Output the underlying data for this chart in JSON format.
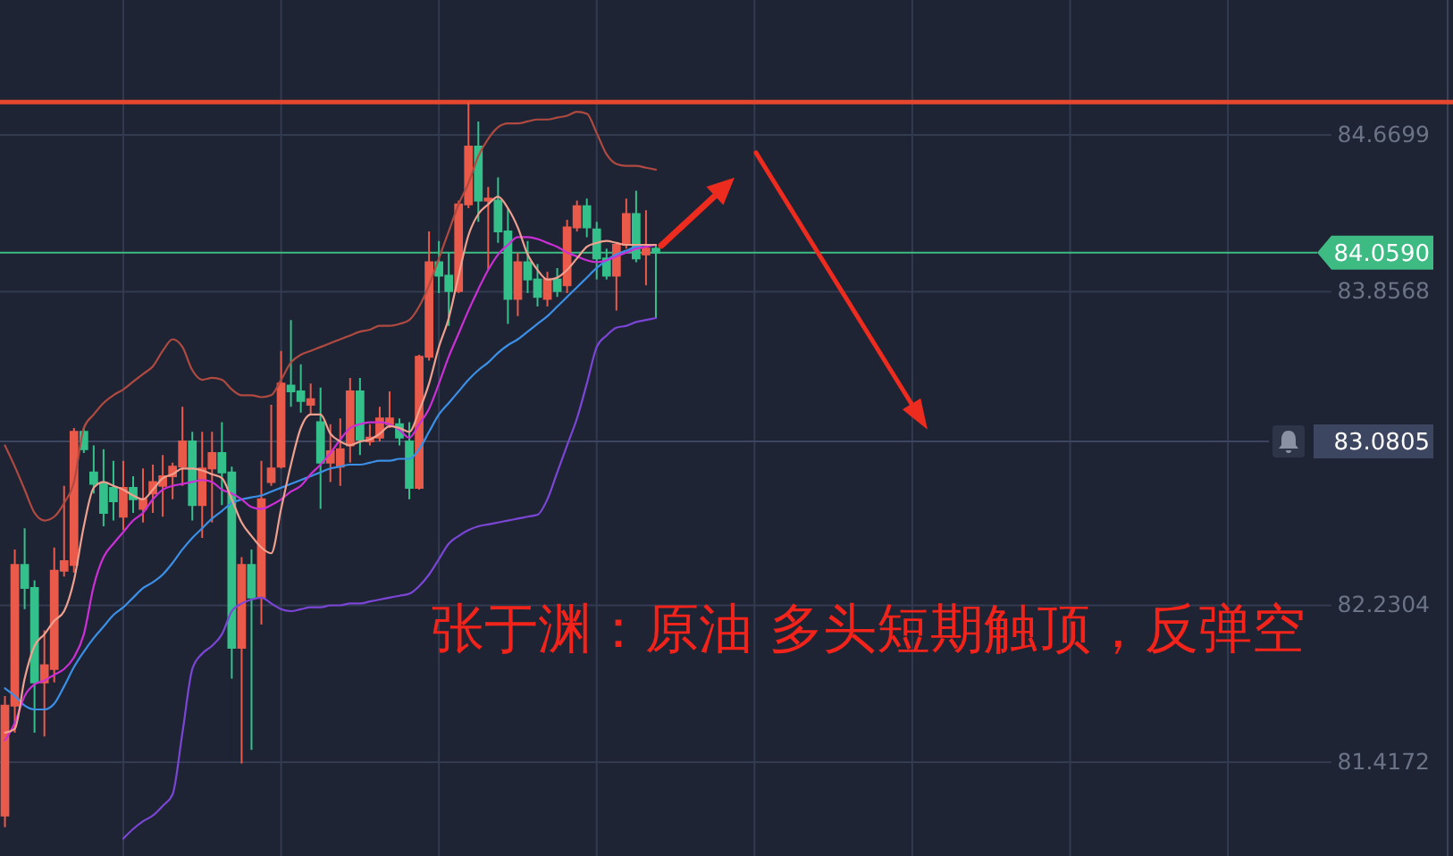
{
  "chart_data": {
    "type": "candlestick",
    "categories": [
      null,
      null,
      null,
      null,
      null,
      null,
      null,
      null,
      null,
      null,
      null,
      null,
      null,
      null,
      null,
      null,
      null,
      null,
      null,
      null,
      null,
      null,
      null,
      null,
      null,
      null,
      null,
      null,
      null,
      null,
      null,
      null,
      null,
      null,
      null,
      null,
      null,
      null,
      null,
      null,
      null,
      null,
      null,
      null,
      null,
      null,
      null,
      null,
      null,
      null,
      null,
      null,
      null,
      null,
      null,
      null,
      null,
      null,
      null,
      null,
      null,
      null,
      null,
      null,
      null,
      null,
      null,
      null,
      null,
      null,
      null,
      null,
      null,
      null,
      null,
      null,
      null,
      null,
      null,
      null,
      null,
      null,
      null,
      null,
      null,
      null,
      null,
      null,
      null,
      null,
      null,
      null,
      null,
      null,
      null,
      null,
      null,
      null,
      null,
      null,
      null,
      null,
      null,
      null,
      null,
      null,
      null,
      null,
      null,
      null,
      null,
      null,
      null,
      null,
      null,
      null,
      null,
      null,
      null,
      null,
      null,
      null,
      null,
      null,
      null,
      null,
      null,
      null,
      null,
      null,
      null,
      null,
      null,
      null,
      null
    ],
    "ohlc": [
      [
        81.14,
        81.76,
        81.08,
        81.71
      ],
      [
        81.71,
        82.52,
        81.57,
        82.44
      ],
      [
        82.44,
        82.63,
        82.21,
        82.32
      ],
      [
        82.32,
        82.36,
        81.57,
        81.83
      ],
      [
        81.83,
        82.1,
        81.55,
        81.92
      ],
      [
        81.9,
        82.53,
        81.83,
        82.41
      ],
      [
        82.41,
        82.85,
        82.38,
        82.46
      ],
      [
        82.44,
        83.15,
        82.4,
        83.13
      ],
      [
        83.13,
        83.15,
        83.02,
        83.04
      ],
      [
        82.92,
        83.06,
        82.81,
        82.86
      ],
      [
        82.86,
        83.04,
        82.64,
        82.71
      ],
      [
        82.84,
        82.98,
        82.67,
        82.77
      ],
      [
        82.69,
        82.98,
        82.62,
        82.84
      ],
      [
        82.84,
        82.9,
        82.71,
        82.78
      ],
      [
        82.73,
        82.94,
        82.66,
        82.78
      ],
      [
        82.81,
        82.96,
        82.71,
        82.87
      ],
      [
        82.85,
        83.01,
        82.69,
        82.9
      ],
      [
        82.9,
        82.97,
        82.78,
        82.95
      ],
      [
        82.95,
        83.26,
        82.85,
        83.08
      ],
      [
        83.08,
        83.13,
        82.67,
        82.75
      ],
      [
        82.75,
        83.13,
        82.58,
        82.94
      ],
      [
        82.94,
        83.13,
        82.66,
        83.02
      ],
      [
        83.02,
        83.18,
        82.75,
        82.92
      ],
      [
        82.92,
        82.95,
        81.85,
        82.01
      ],
      [
        82.01,
        82.48,
        81.41,
        82.44
      ],
      [
        82.44,
        82.52,
        81.48,
        82.27
      ],
      [
        82.27,
        82.98,
        82.13,
        82.78
      ],
      [
        82.87,
        83.27,
        82.85,
        82.94
      ],
      [
        82.95,
        83.55,
        82.94,
        83.38
      ],
      [
        83.37,
        83.71,
        83.26,
        83.34
      ],
      [
        83.34,
        83.48,
        83.23,
        83.29
      ],
      [
        83.27,
        83.38,
        83.22,
        83.3
      ],
      [
        83.18,
        83.36,
        82.73,
        82.97
      ],
      [
        82.97,
        83.17,
        82.87,
        83.03
      ],
      [
        82.95,
        83.2,
        82.85,
        83.04
      ],
      [
        83.06,
        83.41,
        82.97,
        83.34
      ],
      [
        83.34,
        83.41,
        83.01,
        83.09
      ],
      [
        83.08,
        83.17,
        83.06,
        83.1
      ],
      [
        83.1,
        83.26,
        83.08,
        83.2
      ],
      [
        83.17,
        83.34,
        83.15,
        83.2
      ],
      [
        83.17,
        83.2,
        83.06,
        83.1
      ],
      [
        83.08,
        83.18,
        82.78,
        82.84
      ],
      [
        82.84,
        83.53,
        82.83,
        83.52
      ],
      [
        83.52,
        84.17,
        83.5,
        84.01
      ],
      [
        84.01,
        84.12,
        83.85,
        83.94
      ],
      [
        83.94,
        84.06,
        83.68,
        83.86
      ],
      [
        83.86,
        84.33,
        83.85,
        84.31
      ],
      [
        84.31,
        84.84,
        84.29,
        84.61
      ],
      [
        84.61,
        84.74,
        84.22,
        84.33
      ],
      [
        84.33,
        84.4,
        83.97,
        84.34
      ],
      [
        84.33,
        84.45,
        84.11,
        84.17
      ],
      [
        84.17,
        84.29,
        83.69,
        83.82
      ],
      [
        83.82,
        84.06,
        83.73,
        84.01
      ],
      [
        84.01,
        84.12,
        83.85,
        83.92
      ],
      [
        83.92,
        84.0,
        83.78,
        83.83
      ],
      [
        83.82,
        83.96,
        83.78,
        83.92
      ],
      [
        83.92,
        83.98,
        83.83,
        83.86
      ],
      [
        83.89,
        84.23,
        83.85,
        84.19
      ],
      [
        84.19,
        84.33,
        84.17,
        84.3
      ],
      [
        84.3,
        84.34,
        84.14,
        84.19
      ],
      [
        84.18,
        84.22,
        83.92,
        84.03
      ],
      [
        84.03,
        84.08,
        83.92,
        83.94
      ],
      [
        83.94,
        84.11,
        83.76,
        84.1
      ],
      [
        84.1,
        84.34,
        84.08,
        84.26
      ],
      [
        84.26,
        84.38,
        84.01,
        84.03
      ],
      [
        84.05,
        84.28,
        83.89,
        84.08
      ],
      [
        84.08,
        84.1,
        83.72,
        84.059
      ],
      null,
      null,
      null,
      null,
      null,
      null,
      null,
      null,
      null,
      null,
      null,
      null,
      null,
      null,
      null,
      null,
      null,
      null,
      null,
      null,
      null,
      null,
      null,
      null,
      null,
      null,
      null,
      null,
      null,
      null,
      null,
      null,
      null,
      null,
      null,
      null,
      null,
      null,
      null,
      null,
      null,
      null,
      null,
      null,
      null,
      null,
      null,
      null,
      null,
      null,
      null,
      null,
      null,
      null,
      null,
      null,
      null,
      null,
      null,
      null,
      null,
      null,
      null,
      null,
      null,
      null,
      null,
      null
    ],
    "colors": [
      "#ea5a4b",
      "#ea5a4b",
      "#34c08b",
      "#34c08b",
      "#ea5a4b",
      "#ea5a4b",
      "#ea5a4b",
      "#ea5a4b",
      "#34c08b",
      "#34c08b",
      "#34c08b",
      "#34c08b",
      "#ea5a4b",
      "#34c08b",
      "#ea5a4b",
      "#ea5a4b",
      "#ea5a4b",
      "#ea5a4b",
      "#ea5a4b",
      "#34c08b",
      "#ea5a4b",
      "#ea5a4b",
      "#34c08b",
      "#34c08b",
      "#ea5a4b",
      "#34c08b",
      "#ea5a4b",
      "#ea5a4b",
      "#ea5a4b",
      "#34c08b",
      "#34c08b",
      "#ea5a4b",
      "#34c08b",
      "#ea5a4b",
      "#ea5a4b",
      "#ea5a4b",
      "#34c08b",
      "#ea5a4b",
      "#ea5a4b",
      "#ea5a4b",
      "#34c08b",
      "#34c08b",
      "#ea5a4b",
      "#ea5a4b",
      "#34c08b",
      "#34c08b",
      "#ea5a4b",
      "#ea5a4b",
      "#34c08b",
      "#ea5a4b",
      "#34c08b",
      "#34c08b",
      "#ea5a4b",
      "#34c08b",
      "#34c08b",
      "#ea5a4b",
      "#34c08b",
      "#ea5a4b",
      "#ea5a4b",
      "#34c08b",
      "#34c08b",
      "#34c08b",
      "#ea5a4b",
      "#ea5a4b",
      "#34c08b",
      "#ea5a4b",
      "#34c08b",
      null,
      null,
      null,
      null,
      null,
      null,
      null,
      null,
      null,
      null,
      null,
      null,
      null,
      null,
      null,
      null,
      null,
      null,
      null,
      null,
      null,
      null,
      null,
      null,
      null,
      null,
      null,
      null,
      null,
      null,
      null,
      null,
      null,
      null,
      null,
      null,
      null,
      null,
      null,
      null,
      null,
      null,
      null,
      null,
      null,
      null,
      null,
      null,
      null,
      null,
      null,
      null,
      null,
      null,
      null,
      null,
      null,
      null,
      null,
      null,
      null,
      null,
      null,
      null,
      null,
      null,
      null,
      null
    ],
    "series": [
      {
        "type": "line",
        "color": "#b04a40",
        "values": [
          83.06,
          82.95,
          82.83,
          82.71,
          82.67,
          82.69,
          82.76,
          82.87,
          83.15,
          83.22,
          83.28,
          83.32,
          83.35,
          83.39,
          83.43,
          83.47,
          83.55,
          83.61,
          83.57,
          83.45,
          83.4,
          83.41,
          83.4,
          83.35,
          83.32,
          83.32,
          83.31,
          83.32,
          83.4,
          83.49,
          83.53,
          83.55,
          83.57,
          83.59,
          83.61,
          83.63,
          83.65,
          83.66,
          83.68,
          83.68,
          83.69,
          83.71,
          83.78,
          83.89,
          84.03,
          84.17,
          84.31,
          84.42,
          84.56,
          84.65,
          84.71,
          84.73,
          84.73,
          84.74,
          84.75,
          84.75,
          84.76,
          84.77,
          84.79,
          84.78,
          84.68,
          84.57,
          84.52,
          84.51,
          84.51,
          84.5,
          84.49,
          null,
          null,
          null,
          null,
          null,
          null,
          null,
          null,
          null,
          null,
          null,
          null,
          null,
          null,
          null,
          null,
          null,
          null,
          null,
          null,
          null,
          null,
          null,
          null,
          null,
          null,
          null,
          null,
          null,
          null,
          null,
          null,
          null,
          null,
          null,
          null,
          null,
          null,
          null,
          null,
          null,
          null,
          null,
          null,
          null,
          null,
          null,
          null,
          null,
          null,
          null,
          null,
          null,
          null,
          null,
          null,
          null,
          null,
          null,
          null,
          null,
          null,
          null,
          null,
          null,
          null,
          null,
          null
        ]
      },
      {
        "type": "line",
        "color": "#7b46d6",
        "values": [
          null,
          null,
          null,
          null,
          null,
          null,
          null,
          null,
          null,
          null,
          null,
          null,
          81.02,
          81.07,
          81.11,
          81.14,
          81.19,
          81.25,
          81.57,
          81.9,
          81.98,
          82.02,
          82.08,
          82.2,
          82.24,
          82.26,
          82.27,
          82.24,
          82.21,
          82.2,
          82.21,
          82.22,
          82.22,
          82.23,
          82.23,
          82.24,
          82.24,
          82.25,
          82.26,
          82.27,
          82.28,
          82.29,
          82.33,
          82.39,
          82.47,
          82.55,
          82.59,
          82.62,
          82.64,
          82.65,
          82.66,
          82.67,
          82.68,
          82.69,
          82.7,
          82.78,
          82.92,
          83.06,
          83.2,
          83.38,
          83.57,
          83.63,
          83.67,
          83.68,
          83.7,
          83.71,
          83.72,
          null,
          null,
          null,
          null,
          null,
          null,
          null,
          null,
          null,
          null,
          null,
          null,
          null,
          null,
          null,
          null,
          null,
          null,
          null,
          null,
          null,
          null,
          null,
          null,
          null,
          null,
          null,
          null,
          null,
          null,
          null,
          null,
          null,
          null,
          null,
          null,
          null,
          null,
          null,
          null,
          null,
          null,
          null,
          null,
          null,
          null,
          null,
          null,
          null,
          null,
          null,
          null,
          null,
          null,
          null,
          null,
          null,
          null,
          null,
          null,
          null,
          null,
          null,
          null,
          null,
          null,
          null,
          null
        ]
      },
      {
        "type": "line",
        "color": "#3b8fe6",
        "values": [
          81.8,
          81.76,
          81.71,
          81.69,
          81.69,
          81.72,
          81.81,
          81.91,
          81.99,
          82.06,
          82.12,
          82.18,
          82.22,
          82.27,
          82.32,
          82.35,
          82.39,
          82.45,
          82.52,
          82.58,
          82.63,
          82.68,
          82.72,
          82.76,
          82.78,
          82.79,
          82.8,
          82.82,
          82.84,
          82.86,
          82.88,
          82.9,
          82.92,
          82.94,
          82.95,
          82.96,
          82.96,
          82.97,
          82.98,
          82.98,
          82.99,
          82.99,
          83.04,
          83.13,
          83.22,
          83.28,
          83.34,
          83.4,
          83.45,
          83.49,
          83.54,
          83.58,
          83.61,
          83.65,
          83.69,
          83.73,
          83.78,
          83.83,
          83.88,
          83.93,
          83.98,
          84.02,
          84.05,
          84.07,
          84.09,
          84.1,
          84.1,
          null,
          null,
          null,
          null,
          null,
          null,
          null,
          null,
          null,
          null,
          null,
          null,
          null,
          null,
          null,
          null,
          null,
          null,
          null,
          null,
          null,
          null,
          null,
          null,
          null,
          null,
          null,
          null,
          null,
          null,
          null,
          null,
          null,
          null,
          null,
          null,
          null,
          null,
          null,
          null,
          null,
          null,
          null,
          null,
          null,
          null,
          null,
          null,
          null,
          null,
          null,
          null,
          null,
          null,
          null,
          null,
          null,
          null,
          null,
          null,
          null,
          null,
          null,
          null,
          null,
          null,
          null,
          null
        ]
      },
      {
        "type": "line",
        "color": "#cc2fd6",
        "values": [
          81.53,
          81.62,
          81.76,
          81.82,
          81.84,
          81.87,
          81.9,
          81.96,
          82.08,
          82.33,
          82.48,
          82.55,
          82.61,
          82.67,
          82.71,
          82.78,
          82.83,
          82.85,
          82.86,
          82.87,
          82.88,
          82.87,
          82.83,
          82.81,
          82.78,
          82.74,
          82.73,
          82.75,
          82.78,
          82.82,
          82.85,
          82.91,
          82.96,
          83.02,
          83.09,
          83.15,
          83.17,
          83.18,
          83.18,
          83.17,
          83.14,
          83.1,
          83.17,
          83.25,
          83.38,
          83.52,
          83.64,
          83.76,
          83.87,
          83.97,
          84.05,
          84.1,
          84.14,
          84.14,
          84.13,
          84.11,
          84.09,
          84.06,
          84.04,
          84.02,
          84.01,
          84.02,
          84.04,
          84.06,
          84.08,
          84.09,
          84.1,
          null,
          null,
          null,
          null,
          null,
          null,
          null,
          null,
          null,
          null,
          null,
          null,
          null,
          null,
          null,
          null,
          null,
          null,
          null,
          null,
          null,
          null,
          null,
          null,
          null,
          null,
          null,
          null,
          null,
          null,
          null,
          null,
          null,
          null,
          null,
          null,
          null,
          null,
          null,
          null,
          null,
          null,
          null,
          null,
          null,
          null,
          null,
          null,
          null,
          null,
          null,
          null,
          null,
          null,
          null,
          null,
          null,
          null,
          null,
          null,
          null,
          null,
          null,
          null,
          null,
          null,
          null,
          null
        ]
      },
      {
        "type": "line",
        "color": "#f0a08f",
        "values": [
          81.57,
          81.59,
          81.85,
          82.02,
          82.08,
          82.15,
          82.2,
          82.36,
          82.64,
          82.84,
          82.87,
          82.85,
          82.83,
          82.8,
          82.78,
          82.83,
          82.89,
          82.91,
          82.94,
          82.94,
          82.93,
          82.91,
          82.89,
          82.78,
          82.66,
          82.59,
          82.53,
          82.5,
          82.73,
          82.96,
          83.15,
          83.22,
          83.22,
          83.12,
          83.08,
          83.06,
          83.08,
          83.09,
          83.12,
          83.16,
          83.15,
          83.13,
          83.24,
          83.38,
          83.57,
          83.72,
          83.94,
          84.15,
          84.26,
          84.31,
          84.35,
          84.29,
          84.19,
          84.05,
          83.97,
          83.92,
          83.93,
          83.97,
          84.03,
          84.09,
          84.11,
          84.12,
          84.11,
          84.1,
          84.1,
          84.1,
          84.1,
          null,
          null,
          null,
          null,
          null,
          null,
          null,
          null,
          null,
          null,
          null,
          null,
          null,
          null,
          null,
          null,
          null,
          null,
          null,
          null,
          null,
          null,
          null,
          null,
          null,
          null,
          null,
          null,
          null,
          null,
          null,
          null,
          null,
          null,
          null,
          null,
          null,
          null,
          null,
          null,
          null,
          null,
          null,
          null,
          null,
          null,
          null,
          null,
          null,
          null,
          null,
          null,
          null,
          null,
          null,
          null,
          null,
          null,
          null,
          null,
          null,
          null,
          null,
          null,
          null,
          null,
          null,
          null
        ]
      }
    ],
    "ylim": [
      80.93,
      85.37
    ],
    "yticks": [
      81.4172,
      82.2304,
      83.8568,
      84.6699
    ],
    "tick_labels": "y",
    "grid": true,
    "ref_lines": [
      {
        "axis": "y",
        "value": 84.84,
        "color": "#e8472f"
      },
      {
        "axis": "y",
        "value": 84.059,
        "label": "84.0590",
        "color": "#3dbb83"
      },
      {
        "axis": "y",
        "value": 83.0805,
        "label": "83.0805",
        "color": "#3c4660"
      }
    ],
    "annotations": [
      "张于渊：原油 多头短期触顶，反弹空"
    ]
  }
}
